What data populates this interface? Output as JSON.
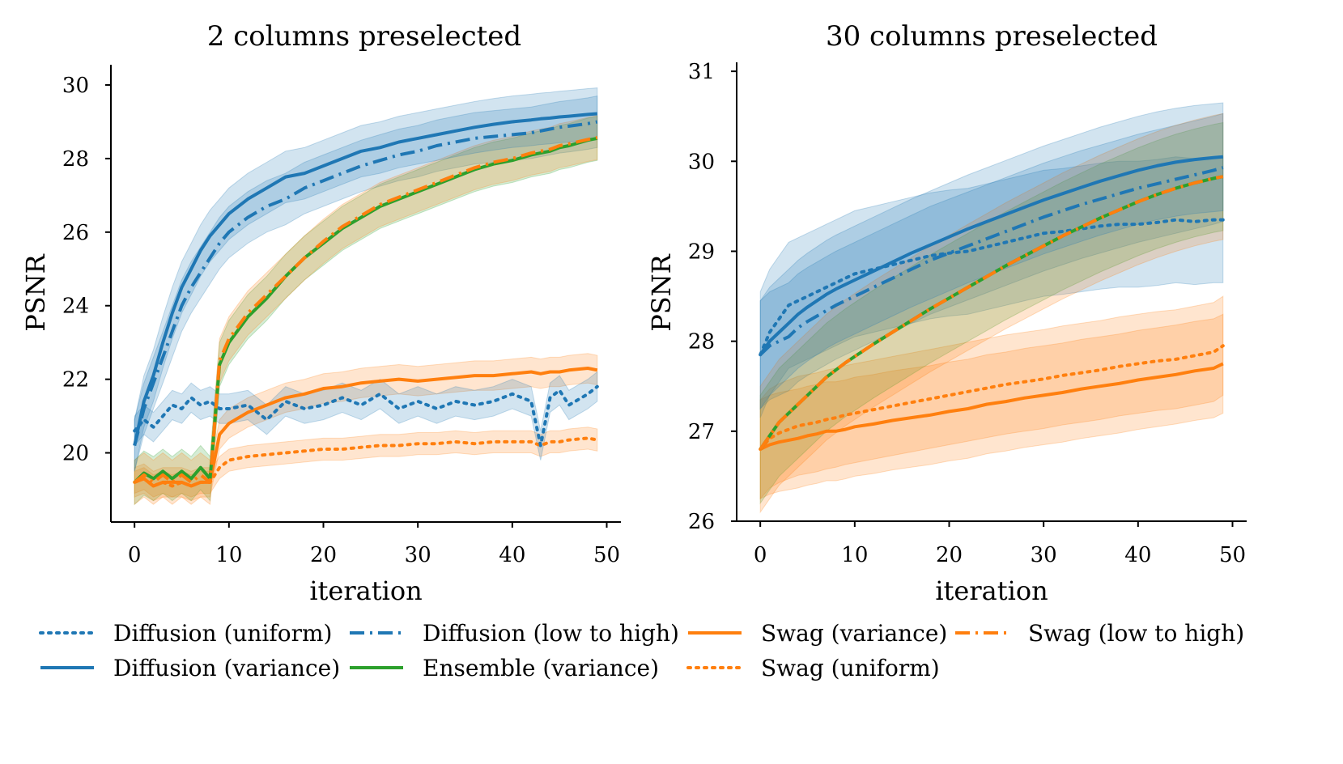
{
  "chart_data": [
    {
      "type": "line",
      "title": "2 columns preselected",
      "xlabel": "iteration",
      "ylabel": "PSNR",
      "xlim": [
        -2.5,
        51.5
      ],
      "ylim": [
        18.12,
        30.55
      ],
      "xticks": [
        "0",
        "10",
        "20",
        "30",
        "40",
        "50"
      ],
      "yticks": [
        "20",
        "22",
        "24",
        "26",
        "28",
        "30"
      ],
      "x": [
        0,
        1,
        2,
        3,
        4,
        5,
        6,
        7,
        8,
        9,
        10,
        12,
        14,
        16,
        18,
        20,
        22,
        24,
        26,
        28,
        30,
        32,
        34,
        36,
        38,
        40,
        42,
        43,
        44,
        45,
        46,
        48,
        49
      ],
      "series": [
        {
          "name": "Diffusion (uniform)",
          "key": "diff_uni",
          "values": [
            20.6,
            20.9,
            20.7,
            21.0,
            21.3,
            21.2,
            21.5,
            21.3,
            21.4,
            21.2,
            21.2,
            21.3,
            20.9,
            21.4,
            21.2,
            21.3,
            21.5,
            21.3,
            21.6,
            21.2,
            21.4,
            21.2,
            21.4,
            21.3,
            21.4,
            21.6,
            21.4,
            20.2,
            21.5,
            21.7,
            21.3,
            21.6,
            21.8
          ],
          "band": 0.4
        },
        {
          "name": "Diffusion (variance)",
          "key": "diff_var",
          "values": [
            20.2,
            21.4,
            22.1,
            23.0,
            23.8,
            24.5,
            25.0,
            25.5,
            25.9,
            26.2,
            26.5,
            26.9,
            27.2,
            27.5,
            27.6,
            27.8,
            28.0,
            28.2,
            28.3,
            28.45,
            28.55,
            28.65,
            28.75,
            28.85,
            28.93,
            29.0,
            29.05,
            29.08,
            29.1,
            29.13,
            29.15,
            29.2,
            29.22
          ],
          "band": 0.7
        },
        {
          "name": "Diffusion (low to high)",
          "key": "diff_lth",
          "values": [
            20.2,
            21.2,
            21.9,
            22.6,
            23.3,
            24.0,
            24.5,
            24.9,
            25.3,
            25.7,
            26.0,
            26.4,
            26.7,
            26.9,
            27.2,
            27.4,
            27.6,
            27.8,
            27.95,
            28.1,
            28.2,
            28.35,
            28.45,
            28.55,
            28.6,
            28.65,
            28.7,
            28.75,
            28.8,
            28.85,
            28.88,
            28.95,
            29.0
          ],
          "band": 0.7
        },
        {
          "name": "Ensemble  (variance)",
          "key": "ens_var",
          "values": [
            19.2,
            19.45,
            19.3,
            19.5,
            19.3,
            19.5,
            19.3,
            19.6,
            19.3,
            22.4,
            23.0,
            23.7,
            24.2,
            24.8,
            25.3,
            25.7,
            26.1,
            26.4,
            26.7,
            26.9,
            27.1,
            27.3,
            27.5,
            27.7,
            27.85,
            27.95,
            28.1,
            28.15,
            28.2,
            28.3,
            28.35,
            28.5,
            28.55
          ],
          "band": 0.6
        },
        {
          "name": "Swag (variance)",
          "key": "swag_var",
          "values": [
            19.2,
            19.3,
            19.1,
            19.2,
            19.2,
            19.2,
            19.1,
            19.2,
            19.2,
            20.5,
            20.8,
            21.1,
            21.3,
            21.5,
            21.6,
            21.75,
            21.8,
            21.9,
            21.95,
            22.0,
            21.95,
            22.0,
            22.05,
            22.1,
            22.1,
            22.15,
            22.2,
            22.15,
            22.2,
            22.2,
            22.25,
            22.3,
            22.25
          ],
          "band": 0.4
        },
        {
          "name": "Swag (low to high)",
          "key": "swag_lth",
          "values": [
            19.2,
            19.4,
            19.2,
            19.4,
            19.2,
            19.4,
            19.2,
            19.4,
            19.2,
            22.5,
            23.1,
            23.8,
            24.3,
            24.8,
            25.3,
            25.75,
            26.15,
            26.45,
            26.75,
            26.95,
            27.15,
            27.35,
            27.55,
            27.75,
            27.9,
            28.0,
            28.15,
            28.2,
            28.25,
            28.35,
            28.4,
            28.52,
            28.57
          ],
          "band": 0.6
        },
        {
          "name": "Swag (uniform)",
          "key": "swag_uni",
          "values": [
            19.2,
            19.3,
            19.1,
            19.2,
            19.1,
            19.2,
            19.1,
            19.2,
            19.2,
            19.6,
            19.8,
            19.9,
            19.95,
            20.0,
            20.05,
            20.1,
            20.1,
            20.15,
            20.2,
            20.2,
            20.25,
            20.25,
            20.3,
            20.25,
            20.3,
            20.3,
            20.3,
            20.2,
            20.3,
            20.3,
            20.35,
            20.4,
            20.35
          ],
          "band": 0.3
        }
      ]
    },
    {
      "type": "line",
      "title": "30 columns preselected",
      "xlabel": "iteration",
      "ylabel": "PSNR",
      "xlim": [
        -2.5,
        51.5
      ],
      "ylim": [
        26.0,
        31.1
      ],
      "xticks": [
        "0",
        "10",
        "20",
        "30",
        "40",
        "50"
      ],
      "yticks": [
        "26",
        "27",
        "28",
        "29",
        "30",
        "31"
      ],
      "x": [
        0,
        1,
        2,
        3,
        4,
        5,
        6,
        7,
        8,
        9,
        10,
        12,
        14,
        16,
        18,
        20,
        22,
        24,
        26,
        28,
        30,
        32,
        34,
        36,
        38,
        40,
        42,
        44,
        46,
        48,
        49
      ],
      "series": [
        {
          "name": "Diffusion (uniform)",
          "key": "diff_uni",
          "values": [
            27.85,
            28.1,
            28.25,
            28.4,
            28.45,
            28.5,
            28.55,
            28.6,
            28.65,
            28.7,
            28.75,
            28.8,
            28.85,
            28.9,
            28.95,
            28.98,
            29.0,
            29.05,
            29.1,
            29.15,
            29.2,
            29.22,
            29.25,
            29.28,
            29.3,
            29.3,
            29.32,
            29.35,
            29.33,
            29.35,
            29.35
          ],
          "band": 0.7
        },
        {
          "name": "Diffusion (variance)",
          "key": "diff_var",
          "values": [
            27.85,
            28.0,
            28.1,
            28.2,
            28.3,
            28.38,
            28.45,
            28.52,
            28.58,
            28.63,
            28.68,
            28.78,
            28.88,
            28.98,
            29.07,
            29.16,
            29.25,
            29.33,
            29.41,
            29.49,
            29.57,
            29.64,
            29.71,
            29.78,
            29.84,
            29.9,
            29.95,
            29.99,
            30.02,
            30.04,
            30.05
          ],
          "band": 0.6
        },
        {
          "name": "Diffusion (low to high)",
          "key": "diff_lth",
          "values": [
            27.85,
            27.95,
            28.0,
            28.05,
            28.15,
            28.22,
            28.28,
            28.34,
            28.4,
            28.45,
            28.5,
            28.6,
            28.7,
            28.8,
            28.9,
            28.98,
            29.06,
            29.14,
            29.22,
            29.3,
            29.38,
            29.45,
            29.52,
            29.58,
            29.64,
            29.7,
            29.75,
            29.8,
            29.85,
            29.9,
            29.93
          ],
          "band": 0.6
        },
        {
          "name": "Ensemble  (variance)",
          "key": "ens_var",
          "values": [
            26.8,
            26.95,
            27.1,
            27.2,
            27.3,
            27.4,
            27.5,
            27.6,
            27.68,
            27.76,
            27.83,
            27.97,
            28.1,
            28.23,
            28.36,
            28.48,
            28.6,
            28.72,
            28.84,
            28.95,
            29.06,
            29.17,
            29.27,
            29.37,
            29.46,
            29.55,
            29.63,
            29.7,
            29.76,
            29.81,
            29.83
          ],
          "band": 0.6
        },
        {
          "name": "Swag (variance)",
          "key": "swag_var",
          "values": [
            26.8,
            26.85,
            26.88,
            26.9,
            26.92,
            26.95,
            26.97,
            27.0,
            27.0,
            27.02,
            27.05,
            27.08,
            27.12,
            27.15,
            27.18,
            27.22,
            27.25,
            27.3,
            27.33,
            27.37,
            27.4,
            27.43,
            27.47,
            27.5,
            27.53,
            27.57,
            27.6,
            27.63,
            27.67,
            27.7,
            27.75
          ],
          "band": 0.55
        },
        {
          "name": "Swag (low to high)",
          "key": "swag_lth",
          "values": [
            26.8,
            26.95,
            27.1,
            27.2,
            27.3,
            27.4,
            27.5,
            27.6,
            27.68,
            27.76,
            27.83,
            27.97,
            28.1,
            28.23,
            28.36,
            28.48,
            28.6,
            28.72,
            28.84,
            28.95,
            29.06,
            29.17,
            29.27,
            29.37,
            29.46,
            29.55,
            29.63,
            29.7,
            29.76,
            29.81,
            29.83
          ],
          "band": 0.7
        },
        {
          "name": "Swag (uniform)",
          "key": "swag_uni",
          "values": [
            26.8,
            26.92,
            26.98,
            27.02,
            27.06,
            27.08,
            27.1,
            27.13,
            27.15,
            27.18,
            27.2,
            27.24,
            27.28,
            27.32,
            27.36,
            27.4,
            27.44,
            27.48,
            27.52,
            27.55,
            27.58,
            27.62,
            27.65,
            27.68,
            27.72,
            27.75,
            27.78,
            27.8,
            27.84,
            27.88,
            27.95
          ],
          "band": 0.55
        }
      ]
    }
  ],
  "legend": {
    "placement": "bottom",
    "items": [
      {
        "label": "Diffusion (uniform)",
        "key": "diff_uni"
      },
      {
        "label": "Diffusion (variance)",
        "key": "diff_var"
      },
      {
        "label": "Diffusion (low to high)",
        "key": "diff_lth"
      },
      {
        "label": "Ensemble  (variance)",
        "key": "ens_var"
      },
      {
        "label": "Swag (variance)",
        "key": "swag_var"
      },
      {
        "label": "Swag (uniform)",
        "key": "swag_uni"
      },
      {
        "label": "Swag (low to high)",
        "key": "swag_lth"
      }
    ]
  },
  "styles": {
    "diff_uni": {
      "color": "#1f77b4",
      "dash": "dot"
    },
    "diff_var": {
      "color": "#1f77b4",
      "dash": "solid"
    },
    "diff_lth": {
      "color": "#1f77b4",
      "dash": "dashdot"
    },
    "ens_var": {
      "color": "#2ca02c",
      "dash": "solid"
    },
    "swag_var": {
      "color": "#ff7f0e",
      "dash": "solid"
    },
    "swag_uni": {
      "color": "#ff7f0e",
      "dash": "dot"
    },
    "swag_lth": {
      "color": "#ff7f0e",
      "dash": "dashdot"
    }
  }
}
